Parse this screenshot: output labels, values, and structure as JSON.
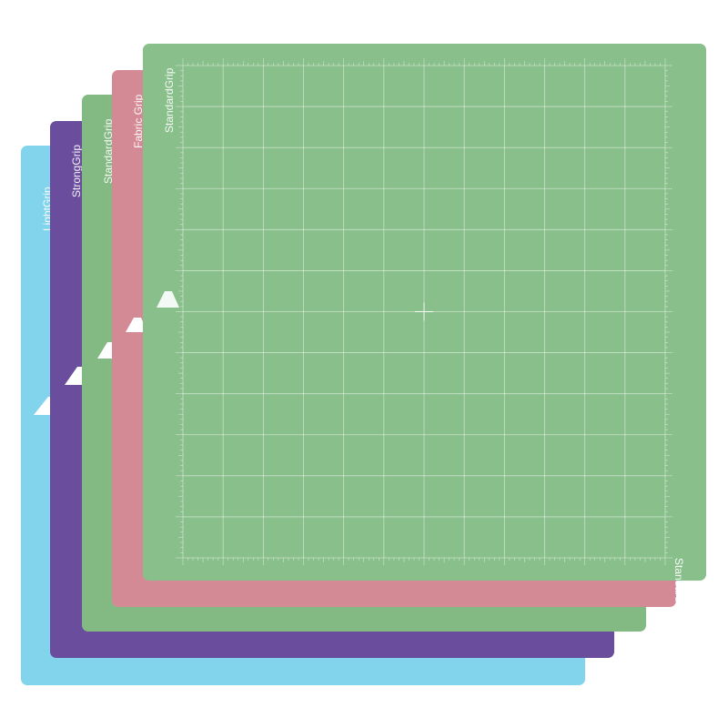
{
  "mats": [
    {
      "id": "light",
      "label": "LightGrip",
      "color": "#82d4ec"
    },
    {
      "id": "strong",
      "label": "StrongGrip",
      "color": "#6a4d9c"
    },
    {
      "id": "standard2",
      "label": "StandardGrip",
      "color": "#83b982"
    },
    {
      "id": "fabric",
      "label": "Fabric Grip",
      "color": "#d48a95"
    },
    {
      "id": "standard1",
      "label": "StandardGrip",
      "color": "#88bf8a",
      "label_bottom": "StandardGrip"
    }
  ]
}
